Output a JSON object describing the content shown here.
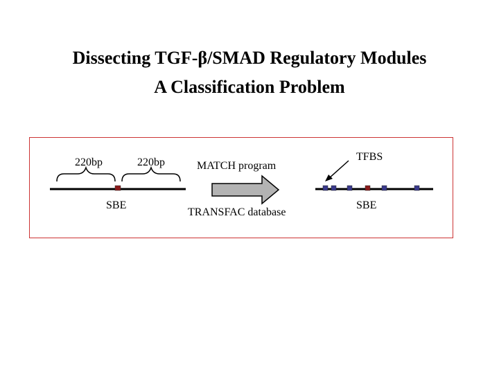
{
  "title": {
    "line1_prefix": "Dissecting TGF-",
    "beta_symbol": "β",
    "line1_suffix": "/SMAD Regulatory Modules",
    "line2": "A Classification Problem"
  },
  "diagram": {
    "left": {
      "flank_left_label": "220bp",
      "flank_right_label": "220bp",
      "sbe_label": "SBE"
    },
    "arrow": {
      "program_label": "MATCH program",
      "database_label": "TRANSFAC database"
    },
    "right": {
      "tfbs_label": "TFBS",
      "sbe_label": "SBE"
    },
    "colors": {
      "frame": "#cc3333",
      "sbe_box": "#8b1a1a",
      "tfbs_box": "#3a3a8c",
      "arrow_fill": "#b3b3b3"
    }
  }
}
